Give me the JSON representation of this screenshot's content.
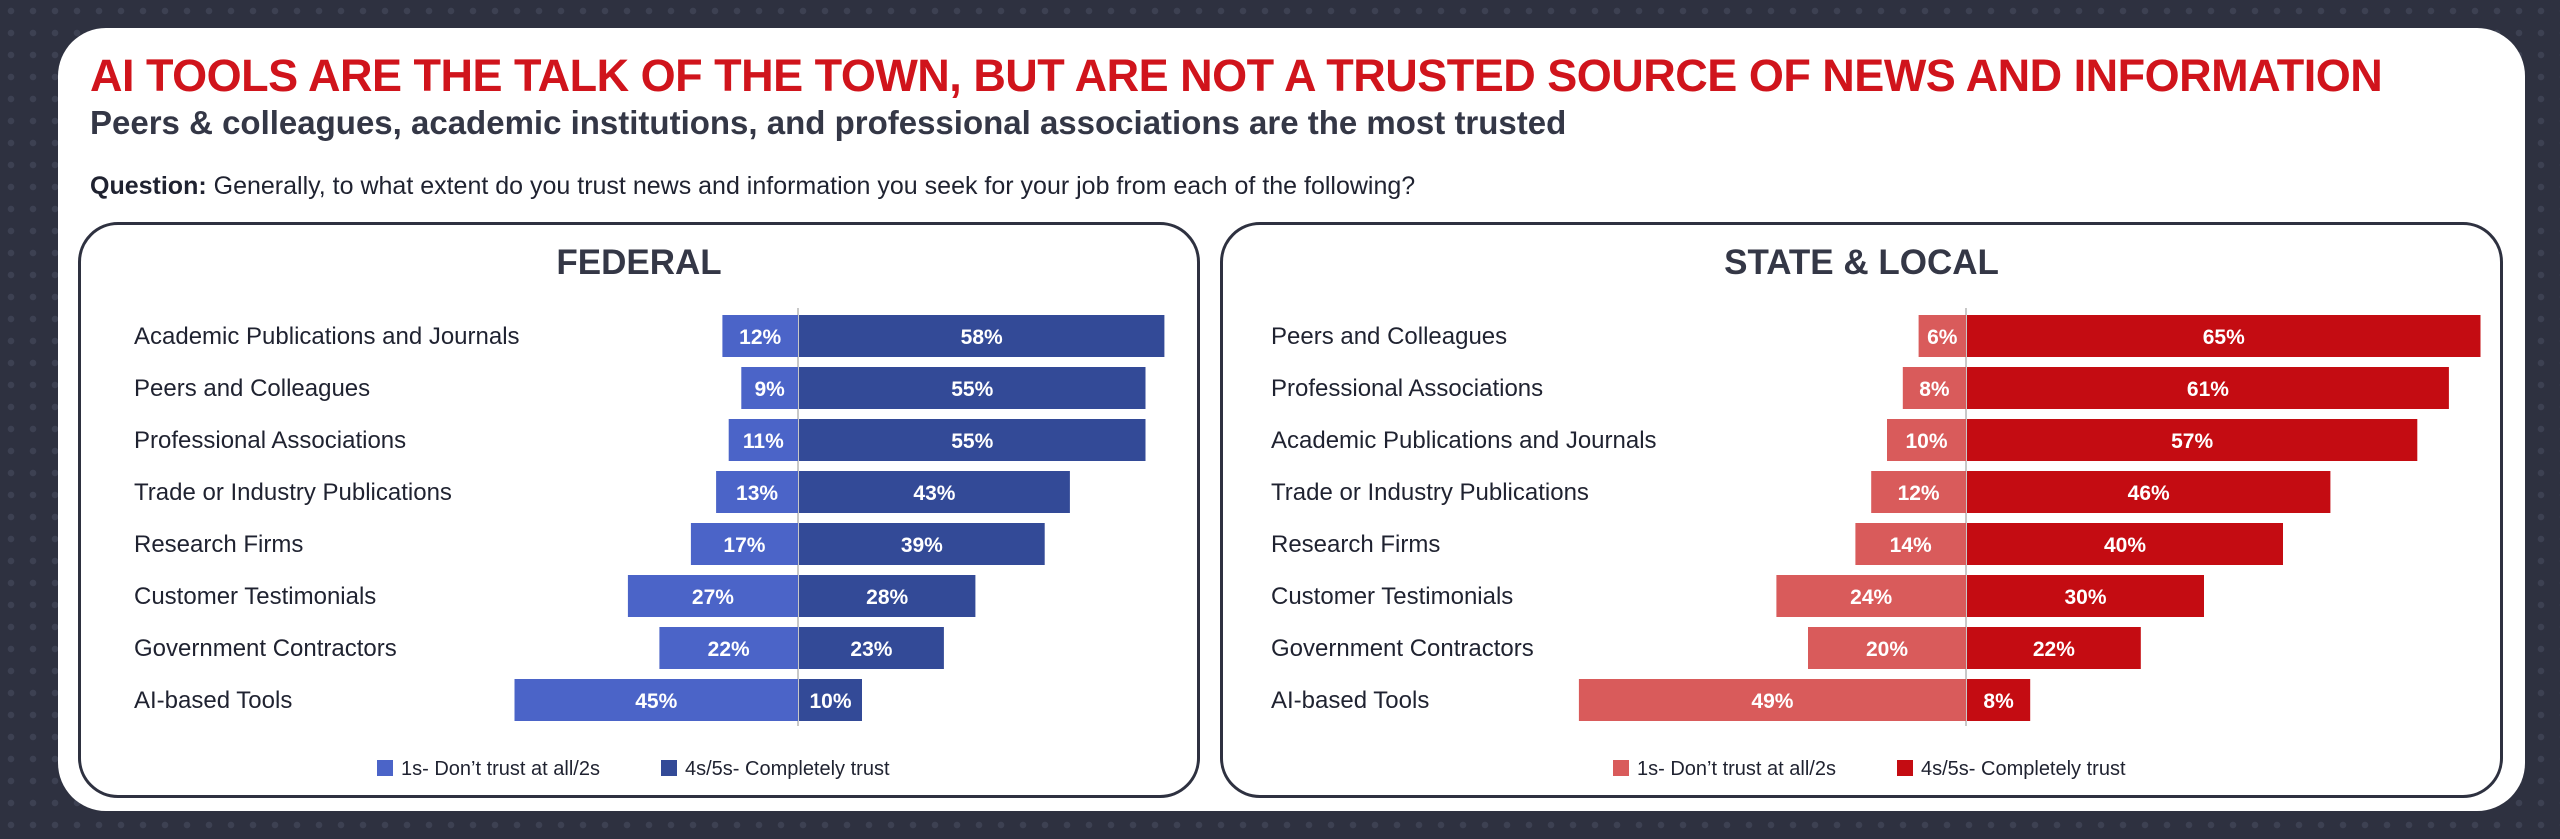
{
  "title": "AI TOOLS ARE THE TALK OF THE TOWN, BUT ARE NOT A TRUSTED SOURCE OF NEWS AND INFORMATION",
  "subtitle": "Peers & colleagues, academic institutions, and professional associations are the most trusted",
  "question": {
    "label": "Question:",
    "text": "Generally, to what extent do you trust news and information you seek for your job from each of the following?"
  },
  "colors": {
    "federal_distrust": "#4b64c8",
    "federal_trust": "#334a97",
    "state_distrust": "#d95b5b",
    "state_trust": "#c40c12"
  },
  "chart_data": [
    {
      "type": "bar",
      "title": "FEDERAL",
      "orientation": "horizontal-diverging",
      "categories": [
        "Academic Publications and Journals",
        "Peers and Colleagues",
        "Professional Associations",
        "Trade or Industry Publications",
        "Research Firms",
        "Customer Testimonials",
        "Government Contractors",
        "AI-based Tools"
      ],
      "series": [
        {
          "name": "1s- Don’t trust at all/2s",
          "values": [
            12,
            9,
            11,
            13,
            17,
            27,
            22,
            45
          ],
          "labels": [
            "12%",
            "9%",
            "11%",
            "13%",
            "17%",
            "27%",
            "22%",
            "45%"
          ]
        },
        {
          "name": "4s/5s- Completely trust",
          "values": [
            58,
            55,
            55,
            43,
            39,
            28,
            23,
            10
          ],
          "labels": [
            "58%",
            "55%",
            "55%",
            "43%",
            "39%",
            "28%",
            "23%",
            "10%"
          ]
        }
      ],
      "legend": "bottom"
    },
    {
      "type": "bar",
      "title": "STATE & LOCAL",
      "orientation": "horizontal-diverging",
      "categories": [
        "Peers and Colleagues",
        "Professional Associations",
        "Academic Publications and Journals",
        "Trade or Industry Publications",
        "Research Firms",
        "Customer Testimonials",
        "Government Contractors",
        "AI-based Tools"
      ],
      "series": [
        {
          "name": "1s- Don’t trust at all/2s",
          "values": [
            6,
            8,
            10,
            12,
            14,
            24,
            20,
            49
          ],
          "labels": [
            "6%",
            "8%",
            "10%",
            "12%",
            "14%",
            "24%",
            "20%",
            "49%"
          ]
        },
        {
          "name": "4s/5s- Completely trust",
          "values": [
            65,
            61,
            57,
            46,
            40,
            30,
            22,
            8
          ],
          "labels": [
            "65%",
            "61%",
            "57%",
            "46%",
            "40%",
            "30%",
            "22%",
            "8%"
          ]
        }
      ],
      "legend": "bottom"
    }
  ]
}
